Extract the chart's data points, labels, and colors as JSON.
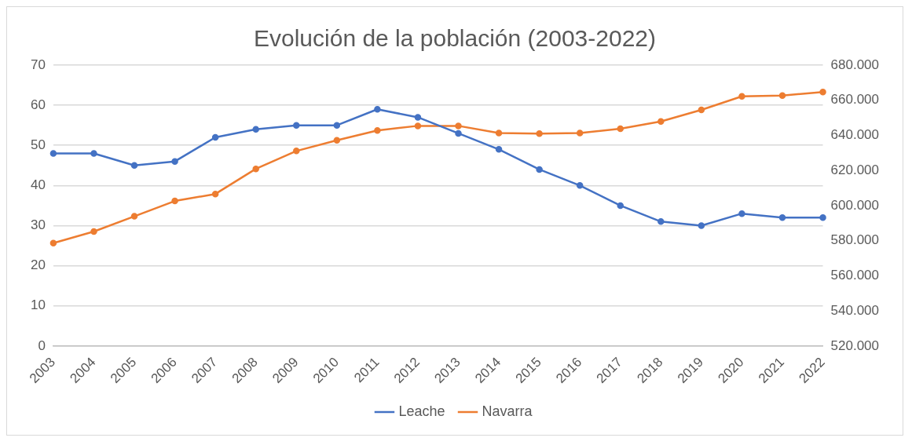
{
  "chart_data": {
    "type": "line",
    "title": "Evolución de la población (2003-2022)",
    "categories": [
      "2003",
      "2004",
      "2005",
      "2006",
      "2007",
      "2008",
      "2009",
      "2010",
      "2011",
      "2012",
      "2013",
      "2014",
      "2015",
      "2016",
      "2017",
      "2018",
      "2019",
      "2020",
      "2021",
      "2022"
    ],
    "series": [
      {
        "name": "Leache",
        "color": "#4472c4",
        "values": [
          48,
          48,
          45,
          46,
          52,
          54,
          55,
          55,
          59,
          57,
          53,
          49,
          44,
          40,
          35,
          31,
          30,
          33,
          32,
          32
        ]
      },
      {
        "name": "Navarra",
        "color": "#ed7d31",
        "axis": "y2",
        "values": [
          578600,
          585200,
          593900,
          602600,
          606600,
          620900,
          631100,
          637200,
          642800,
          645400,
          645400,
          641300,
          641000,
          641300,
          643800,
          647900,
          654500,
          662200,
          662700,
          664700
        ]
      }
    ],
    "ylim": [
      0,
      70
    ],
    "yticks": [
      0,
      10,
      20,
      30,
      40,
      50,
      60,
      70
    ],
    "y2lim": [
      520000,
      680000
    ],
    "y2ticks": [
      {
        "value": 520000,
        "label": "520.000"
      },
      {
        "value": 540000,
        "label": "540.000"
      },
      {
        "value": 560000,
        "label": "560.000"
      },
      {
        "value": 580000,
        "label": "580.000"
      },
      {
        "value": 600000,
        "label": "600.000"
      },
      {
        "value": 620000,
        "label": "620.000"
      },
      {
        "value": 640000,
        "label": "640.000"
      },
      {
        "value": 660000,
        "label": "660.000"
      },
      {
        "value": 680000,
        "label": "680.000"
      }
    ],
    "grid": "y",
    "legend": "bottom",
    "marker": "circle",
    "line_style": "solid"
  }
}
